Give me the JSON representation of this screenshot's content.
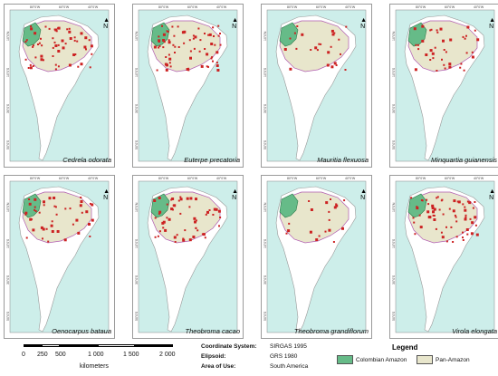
{
  "panels": [
    {
      "species": "Cedrela odorata",
      "density": 60
    },
    {
      "species": "Euterpe precatoria",
      "density": 70
    },
    {
      "species": "Mauritia flexuosa",
      "density": 25
    },
    {
      "species": "Minquartia guianensis",
      "density": 40
    },
    {
      "species": "Oenocarpus bataua",
      "density": 45
    },
    {
      "species": "Theobroma cacao",
      "density": 55
    },
    {
      "species": "Theobroma grandiflorum",
      "density": 20
    },
    {
      "species": "Virola elongata",
      "density": 65
    }
  ],
  "graticule": {
    "top_labels": [
      "80°0'W",
      "60°0'W",
      "40°0'W"
    ],
    "left_labels": [
      "10°0'N",
      "10°0'S",
      "30°0'S",
      "50°0'S"
    ]
  },
  "north_arrow": "N",
  "scale_bar": {
    "labels": [
      "0",
      "250",
      "500",
      "1 000",
      "1 500",
      "2 000"
    ],
    "units": "kilometers"
  },
  "coordinate_info": {
    "system_label": "Coordinate System:",
    "system_value": "SIRGAS 1995",
    "ellipsoid_label": "Elipsoid:",
    "ellipsoid_value": "GRS 1980",
    "area_label": "Area of Use:",
    "area_value": "South America"
  },
  "legend": {
    "title": "Legend",
    "items": [
      {
        "label": "Colombian Amazon",
        "color": "#66bb88"
      },
      {
        "label": "Pan-Amazon",
        "color": "#e8e6cc"
      }
    ]
  },
  "colors": {
    "ocean": "#cdeeea",
    "land": "#ffffff",
    "panamazon": "#e8e6cc",
    "colombia": "#66bb88",
    "points": "#cc2222"
  }
}
